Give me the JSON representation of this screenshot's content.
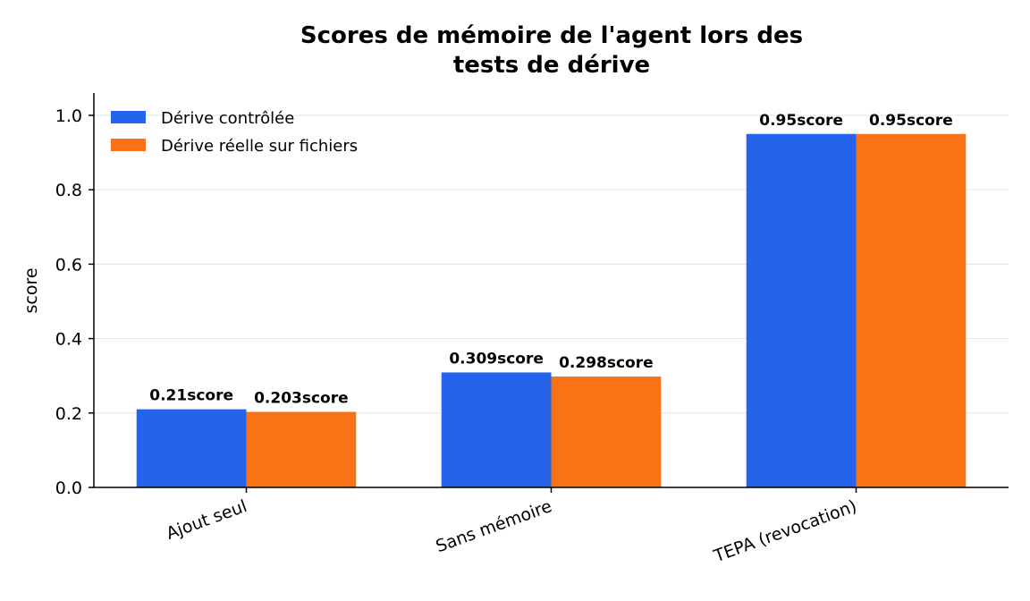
{
  "chart_data": {
    "type": "bar",
    "title": "Scores de mémoire de l'agent lors des tests de dérive",
    "title_lines": [
      "Scores de mémoire de l'agent lors des",
      "tests de dérive"
    ],
    "xlabel": "",
    "ylabel": "score",
    "categories": [
      "Ajout seul",
      "Sans mémoire",
      "TEPA (revocation)"
    ],
    "series": [
      {
        "name": "Dérive contrôlée",
        "color": "#2563eb",
        "values": [
          0.21,
          0.309,
          0.95
        ],
        "labels": [
          "0.21score",
          "0.309score",
          "0.95score"
        ]
      },
      {
        "name": "Dérive réelle sur fichiers",
        "color": "#f97316",
        "values": [
          0.203,
          0.298,
          0.95
        ],
        "labels": [
          "0.203score",
          "0.298score",
          "0.95score"
        ]
      }
    ],
    "ylim": [
      0,
      1.06
    ],
    "yticks": [
      "0.0",
      "0.2",
      "0.4",
      "0.6",
      "0.8",
      "1.0"
    ],
    "grid": "horizontal",
    "legend_position": "top-left"
  }
}
